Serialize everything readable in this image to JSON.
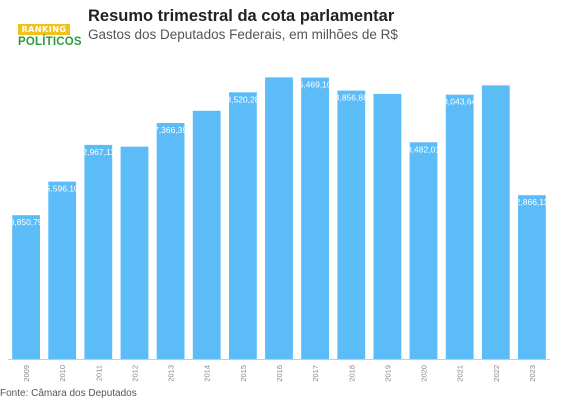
{
  "header": {
    "title": "Resumo trimestral da cota parlamentar",
    "subtitle": "Gastos dos Deputados Federais, em milhões de R$",
    "logo_top": "RANKING",
    "logo_bottom": "POLÍTICOS"
  },
  "footer": {
    "source": "Fonte: Câmara dos Deputados"
  },
  "colors": {
    "bar": "#5bbcf7",
    "logo_yellow": "#f2c21b",
    "logo_green": "#2e9b3e",
    "baseline": "#cccccc"
  },
  "chart_data": {
    "type": "bar",
    "title": "Resumo trimestral da cota parlamentar",
    "subtitle": "Gastos dos Deputados Federais, em milhões de R$",
    "categories": [
      "2009",
      "2010",
      "2011",
      "2012",
      "2013",
      "2014",
      "2015",
      "2016",
      "2017",
      "2018",
      "2019",
      "2020",
      "2021",
      "2022",
      "2023"
    ],
    "values": [
      28850794,
      35596104,
      42967111,
      42600000,
      47366393,
      49800000,
      53520289,
      56500000,
      56469101,
      53856883,
      53200000,
      43482016,
      53043647,
      54900000,
      32866118
    ],
    "data_labels": [
      "28,850,794",
      "35,596,104",
      "42,967,111",
      "",
      "47,366,393",
      "",
      "53,520,289",
      "",
      "56,469,101",
      "53,856,883",
      "",
      "43,482,016",
      "53,043,647",
      "",
      "32,866,118"
    ],
    "ylim": [
      0,
      60000000
    ],
    "grid": false,
    "legend": "none"
  }
}
